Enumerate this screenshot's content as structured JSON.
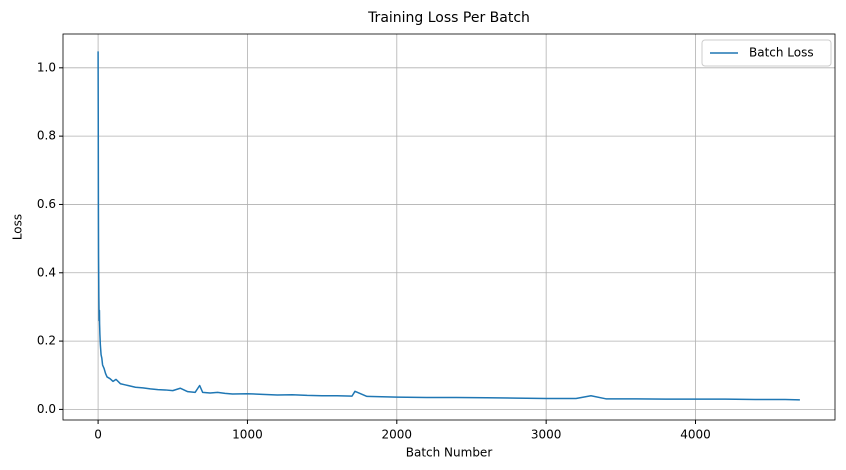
{
  "chart_data": {
    "type": "line",
    "title": "Training Loss Per Batch",
    "x_label": "Batch Number",
    "y_label": "Loss",
    "x": [
      0,
      1,
      2,
      3,
      5,
      7,
      9,
      10,
      12,
      15,
      20,
      25,
      30,
      40,
      50,
      60,
      80,
      100,
      120,
      150,
      180,
      200,
      250,
      300,
      350,
      400,
      450,
      500,
      550,
      600,
      650,
      680,
      700,
      750,
      800,
      850,
      900,
      1000,
      1100,
      1200,
      1300,
      1400,
      1500,
      1600,
      1700,
      1720,
      1800,
      1900,
      2000,
      2200,
      2400,
      2600,
      2800,
      3000,
      3200,
      3300,
      3400,
      3600,
      3800,
      4000,
      4200,
      4400,
      4600,
      4699
    ],
    "series": [
      {
        "name": "Batch Loss",
        "color": "#1f77b4",
        "values": [
          1.048,
          0.85,
          0.6,
          0.45,
          0.33,
          0.26,
          0.29,
          0.25,
          0.22,
          0.19,
          0.16,
          0.15,
          0.13,
          0.12,
          0.105,
          0.095,
          0.09,
          0.082,
          0.088,
          0.075,
          0.072,
          0.07,
          0.065,
          0.063,
          0.06,
          0.058,
          0.057,
          0.055,
          0.062,
          0.052,
          0.05,
          0.07,
          0.05,
          0.048,
          0.05,
          0.047,
          0.045,
          0.046,
          0.044,
          0.042,
          0.043,
          0.041,
          0.04,
          0.04,
          0.039,
          0.053,
          0.038,
          0.037,
          0.036,
          0.035,
          0.035,
          0.034,
          0.033,
          0.032,
          0.032,
          0.04,
          0.031,
          0.031,
          0.03,
          0.03,
          0.03,
          0.029,
          0.029,
          0.028
        ]
      }
    ],
    "xlim": [
      -235,
      4934
    ],
    "ylim": [
      -0.031,
      1.099
    ],
    "xticks": [
      0,
      1000,
      2000,
      3000,
      4000
    ],
    "yticks": [
      {
        "value": 0,
        "label": "0.0"
      },
      0.2,
      0.4,
      0.6,
      0.8,
      {
        "value": 1,
        "label": "1.0"
      }
    ],
    "grid": true,
    "legend": "upper right"
  }
}
